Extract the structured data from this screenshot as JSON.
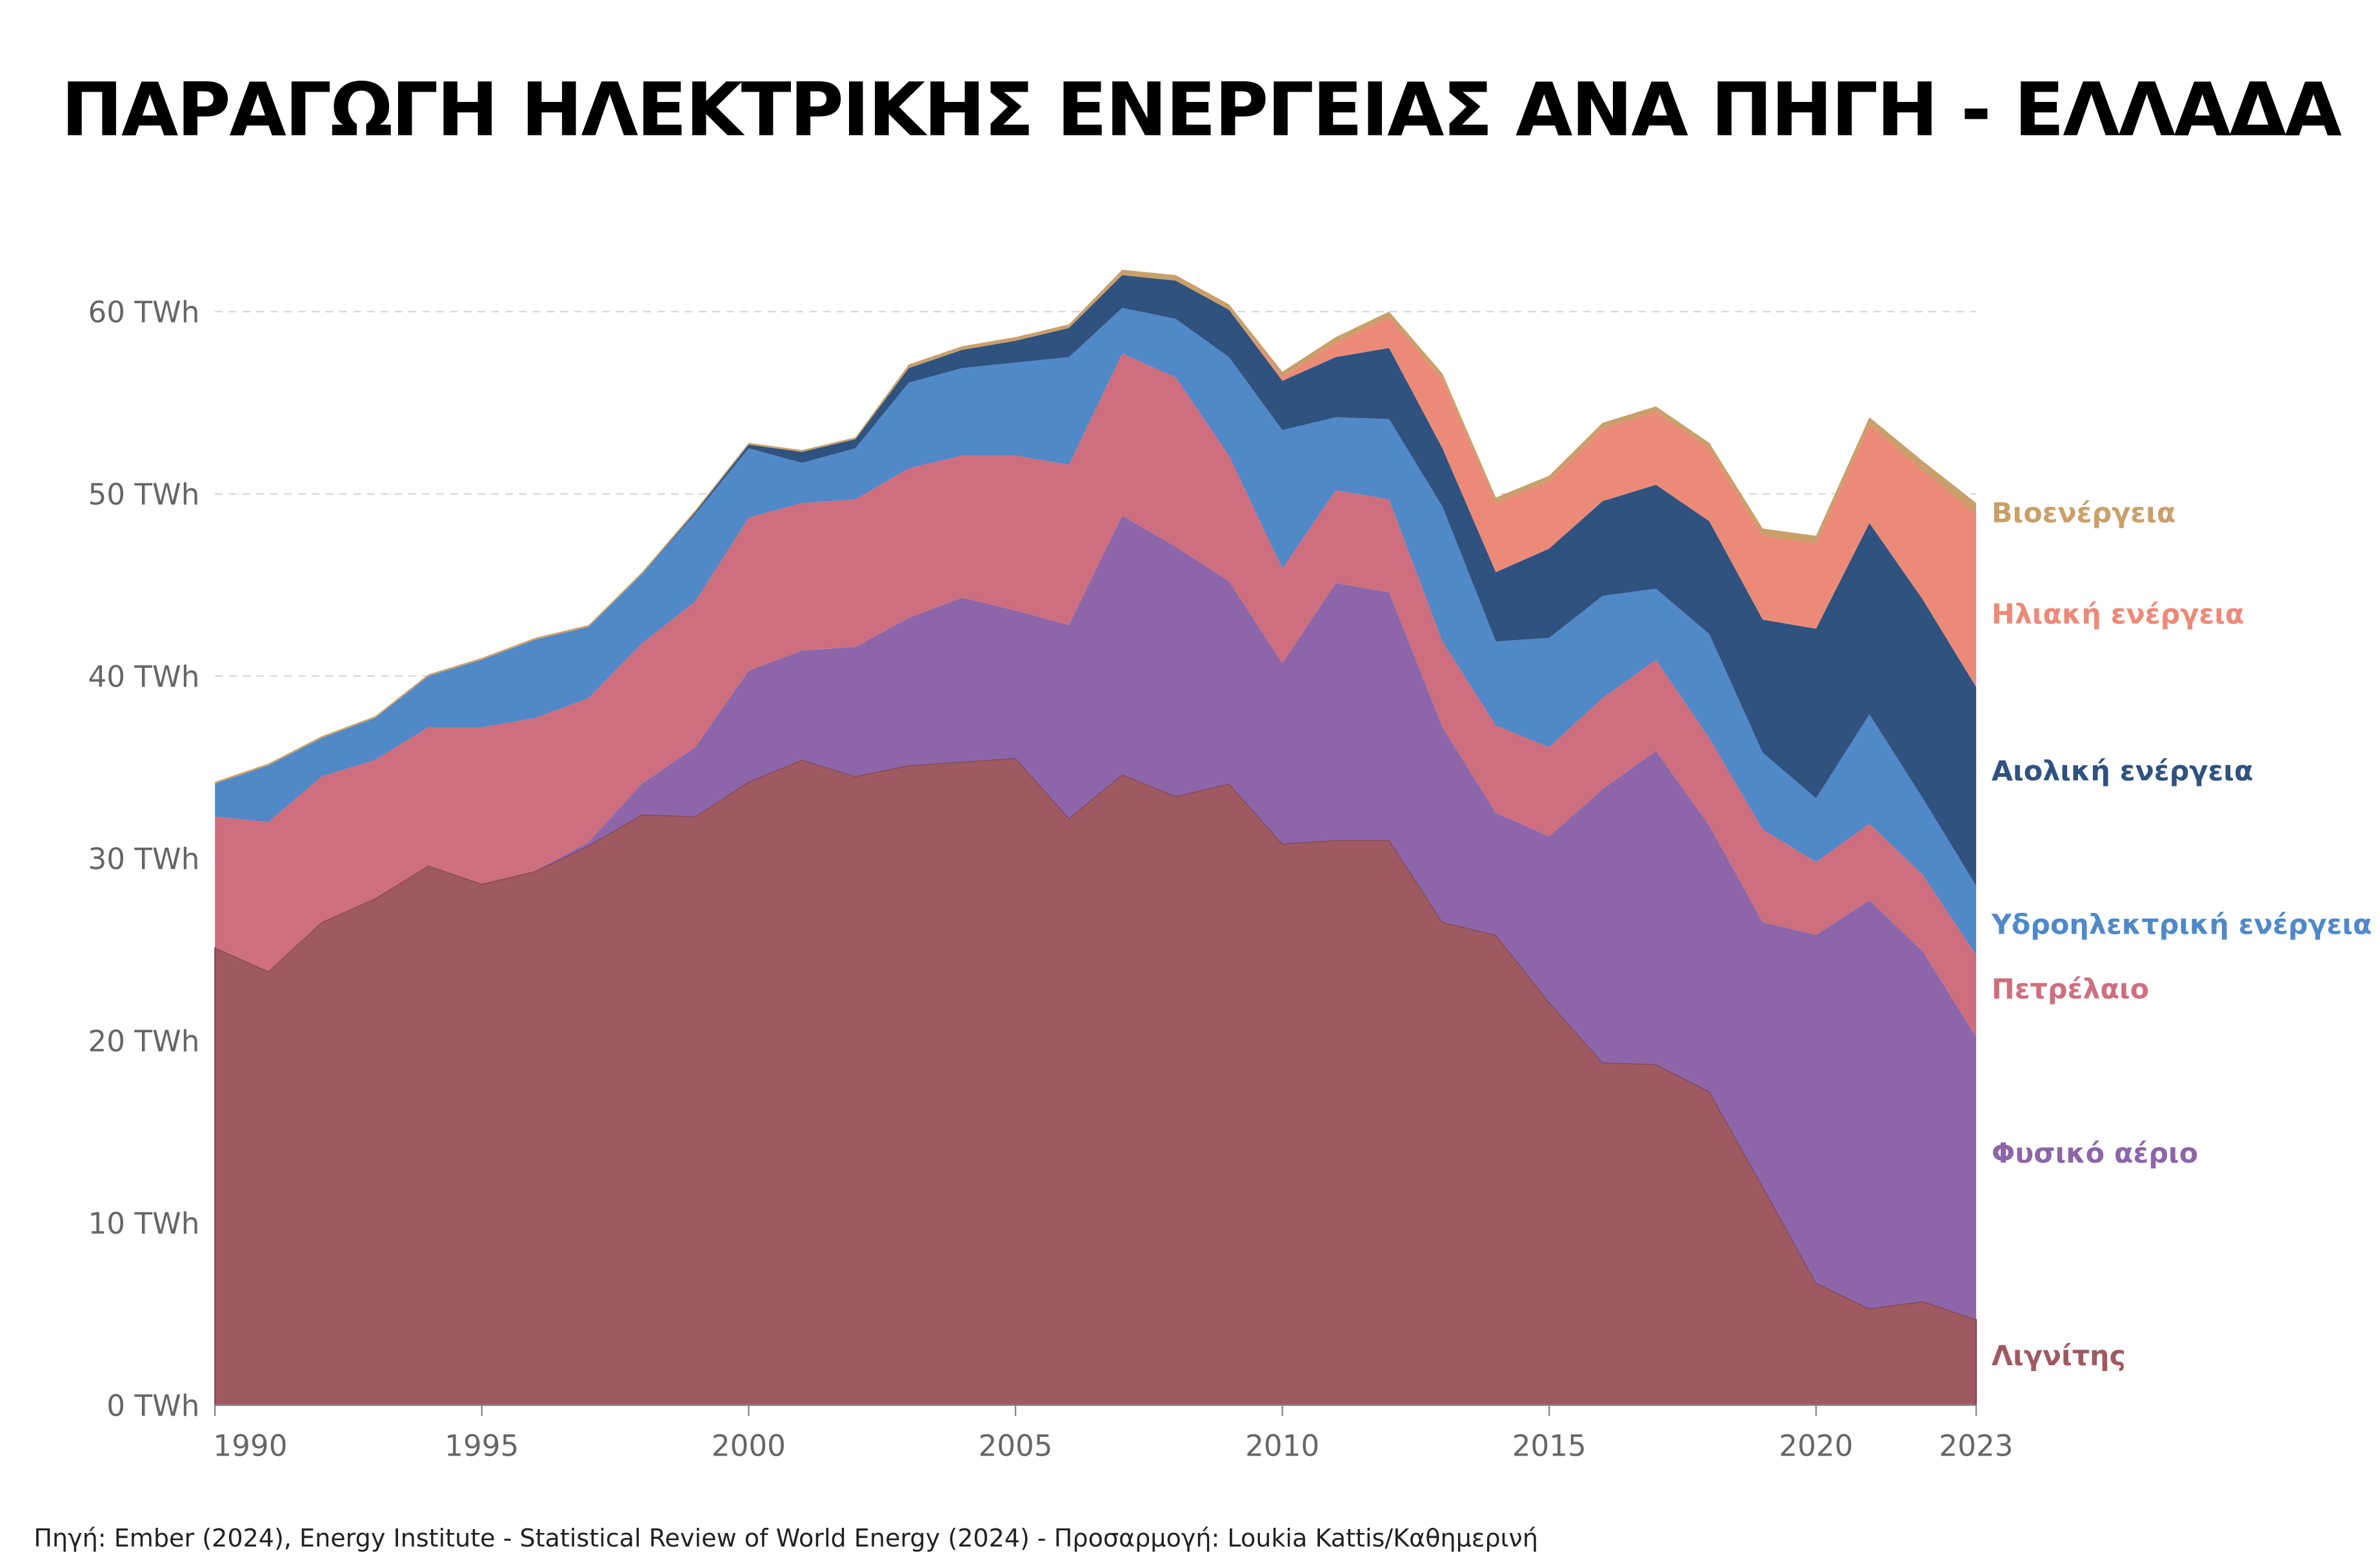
{
  "chart_data": {
    "type": "area",
    "stacked": true,
    "title": "ΠΑΡΑΓΩΓΗ ΗΛΕΚΤΡΙΚΗΣ ΕΝΕΡΓΕΙΑΣ ΑΝΑ ΠΗΓΗ - ΕΛΛΑΔΑ",
    "source": "Πηγή: Ember (2024), Energy Institute - Statistical Review of World Energy (2024) - Προσαρμογή: Loukia Kattis/Καθημερινή",
    "x": [
      1990,
      1991,
      1992,
      1993,
      1994,
      1995,
      1996,
      1997,
      1998,
      1999,
      2000,
      2001,
      2002,
      2003,
      2004,
      2005,
      2006,
      2007,
      2008,
      2009,
      2010,
      2011,
      2012,
      2013,
      2014,
      2015,
      2016,
      2017,
      2018,
      2019,
      2020,
      2021,
      2022,
      2023
    ],
    "xticks": [
      "1990",
      "1995",
      "2000",
      "2005",
      "2010",
      "2015",
      "2020",
      "2023"
    ],
    "yticks": [
      "0 TWh",
      "10 TWh",
      "20 TWh",
      "30 TWh",
      "40 TWh",
      "50 TWh",
      "60 TWh"
    ],
    "ylim": [
      0,
      62.5
    ],
    "grid": "horizontal dashed",
    "legend": "right, inline labels",
    "series": [
      {
        "name": "Λιγνίτης",
        "color": "#9e5a60",
        "values": [
          25.1,
          23.8,
          26.5,
          27.8,
          29.6,
          28.6,
          29.3,
          30.7,
          32.4,
          32.3,
          34.2,
          35.4,
          34.5,
          35.1,
          35.3,
          35.5,
          32.2,
          34.6,
          33.4,
          34.1,
          30.8,
          31.0,
          31.0,
          26.5,
          25.8,
          22.1,
          18.8,
          18.7,
          17.2,
          12.0,
          6.7,
          5.3,
          5.7,
          4.7
        ]
      },
      {
        "name": "Φυσικό αέριο",
        "color": "#8c66a8",
        "values": [
          0,
          0,
          0,
          0,
          0,
          0,
          0,
          0.2,
          1.7,
          3.8,
          6.1,
          6.0,
          7.1,
          8.1,
          9.0,
          8.1,
          10.6,
          14.2,
          13.7,
          11.1,
          9.9,
          14.1,
          13.6,
          10.7,
          6.7,
          9.1,
          15.0,
          17.2,
          14.6,
          14.5,
          19.1,
          22.4,
          19.2,
          15.5
        ]
      },
      {
        "name": "Πετρέλαιο",
        "color": "#cd6f7e",
        "values": [
          7.2,
          8.2,
          8.0,
          7.6,
          7.6,
          8.6,
          8.4,
          7.9,
          7.7,
          8.0,
          8.4,
          8.1,
          8.1,
          8.2,
          7.8,
          8.5,
          8.8,
          8.9,
          9.3,
          6.9,
          5.2,
          5.1,
          5.1,
          4.7,
          4.8,
          4.9,
          5.0,
          5.0,
          4.8,
          5.1,
          4.0,
          4.2,
          4.2,
          4.5
        ]
      },
      {
        "name": "Υδροηλεκτρική ενέργεια",
        "color": "#5088c8",
        "values": [
          1.8,
          3.1,
          2.1,
          2.3,
          2.8,
          3.7,
          4.3,
          3.9,
          3.8,
          4.8,
          3.8,
          2.2,
          2.8,
          4.7,
          4.8,
          5.1,
          5.9,
          2.5,
          3.2,
          5.4,
          7.6,
          4.0,
          4.4,
          7.4,
          4.6,
          6.0,
          5.6,
          3.9,
          5.7,
          4.2,
          3.5,
          6.0,
          4.2,
          3.8
        ]
      },
      {
        "name": "Αιολική ενέργεια",
        "color": "#30527f",
        "values": [
          0,
          0,
          0,
          0,
          0,
          0,
          0,
          0,
          0,
          0.1,
          0.2,
          0.6,
          0.5,
          0.8,
          1.0,
          1.2,
          1.6,
          1.8,
          2.1,
          2.6,
          2.7,
          3.3,
          3.9,
          3.2,
          3.8,
          4.9,
          5.2,
          5.7,
          6.2,
          7.3,
          9.3,
          10.5,
          10.9,
          10.9
        ]
      },
      {
        "name": "Ηλιακή ενέργεια",
        "color": "#ec8a78",
        "values": [
          0,
          0,
          0,
          0,
          0,
          0,
          0,
          0,
          0,
          0,
          0,
          0,
          0,
          0,
          0,
          0,
          0,
          0,
          0,
          0,
          0.2,
          0.8,
          1.7,
          3.8,
          3.8,
          3.7,
          4.0,
          4.0,
          4.0,
          4.6,
          4.7,
          5.4,
          7.1,
          9.5
        ]
      },
      {
        "name": "Βιοενέργεια",
        "color": "#c9a06a",
        "values": [
          0.1,
          0.1,
          0.1,
          0.1,
          0.1,
          0.1,
          0.1,
          0.1,
          0.1,
          0.1,
          0.1,
          0.1,
          0.1,
          0.2,
          0.2,
          0.2,
          0.2,
          0.3,
          0.3,
          0.3,
          0.3,
          0.3,
          0.3,
          0.3,
          0.3,
          0.3,
          0.3,
          0.3,
          0.3,
          0.4,
          0.4,
          0.4,
          0.5,
          0.6
        ]
      }
    ]
  }
}
